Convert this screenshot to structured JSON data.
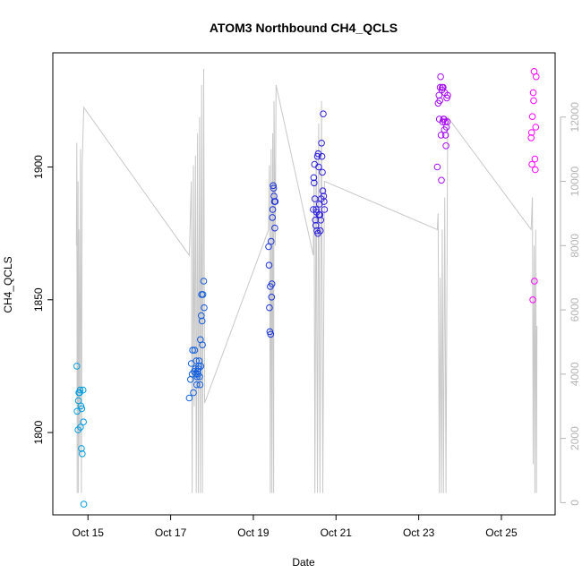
{
  "chart_data": {
    "type": "scatter",
    "title": "ATOM3 Northbound CH4_QCLS",
    "xlabel": "Date",
    "ylabel": "CH4_QCLS",
    "x_ticks": [
      "Oct 15",
      "Oct 17",
      "Oct 19",
      "Oct 21",
      "Oct 23",
      "Oct 25"
    ],
    "y_ticks": [
      1800,
      1850,
      1900
    ],
    "y2_ticks": [
      0,
      2000,
      4000,
      6000,
      8000,
      10000,
      12000
    ],
    "xlim_days": [
      14.15,
      26.3
    ],
    "ylim": [
      1769,
      1943
    ],
    "y2lim": [
      -380,
      14000
    ],
    "colors": {
      "frame": "#000000",
      "altitude_line": "#c8c8c8",
      "right_axis": "#b4b4b4",
      "gradient_start": "#00a0e0",
      "gradient_mid": "#2020d8",
      "gradient_end": "#ff00ff"
    },
    "series": [
      {
        "type": "scatter",
        "colored_by": "time",
        "points": [
          [
            14.73,
            1825
          ],
          [
            14.74,
            1808
          ],
          [
            14.76,
            1801
          ],
          [
            14.77,
            1812
          ],
          [
            14.78,
            1815
          ],
          [
            14.8,
            1815
          ],
          [
            14.81,
            1816
          ],
          [
            14.82,
            1802
          ],
          [
            14.83,
            1810
          ],
          [
            14.84,
            1794
          ],
          [
            14.85,
            1809
          ],
          [
            14.86,
            1792
          ],
          [
            14.88,
            1816
          ],
          [
            14.89,
            1804
          ],
          [
            14.9,
            1773
          ],
          [
            17.45,
            1813
          ],
          [
            17.48,
            1820
          ],
          [
            17.5,
            1826
          ],
          [
            17.52,
            1822
          ],
          [
            17.53,
            1831
          ],
          [
            17.55,
            1815
          ],
          [
            17.57,
            1823
          ],
          [
            17.58,
            1831
          ],
          [
            17.6,
            1824
          ],
          [
            17.61,
            1822
          ],
          [
            17.62,
            1827
          ],
          [
            17.63,
            1818
          ],
          [
            17.64,
            1821
          ],
          [
            17.65,
            1823
          ],
          [
            17.66,
            1822
          ],
          [
            17.67,
            1824
          ],
          [
            17.68,
            1825
          ],
          [
            17.69,
            1827
          ],
          [
            17.7,
            1821
          ],
          [
            17.71,
            1818
          ],
          [
            17.72,
            1835
          ],
          [
            17.73,
            1825
          ],
          [
            17.74,
            1844
          ],
          [
            17.75,
            1852
          ],
          [
            17.76,
            1842
          ],
          [
            17.77,
            1833
          ],
          [
            17.78,
            1852
          ],
          [
            17.8,
            1857
          ],
          [
            17.81,
            1847
          ],
          [
            19.37,
            1870
          ],
          [
            19.38,
            1863
          ],
          [
            19.39,
            1847
          ],
          [
            19.4,
            1838
          ],
          [
            19.41,
            1855
          ],
          [
            19.42,
            1837
          ],
          [
            19.43,
            1872
          ],
          [
            19.44,
            1851
          ],
          [
            19.45,
            1856
          ],
          [
            19.46,
            1881
          ],
          [
            19.47,
            1884
          ],
          [
            19.48,
            1893
          ],
          [
            19.49,
            1892
          ],
          [
            19.5,
            1889
          ],
          [
            19.51,
            1887
          ],
          [
            19.52,
            1877
          ],
          [
            19.53,
            1887
          ],
          [
            20.45,
            1884
          ],
          [
            20.46,
            1896
          ],
          [
            20.47,
            1894
          ],
          [
            20.48,
            1901
          ],
          [
            20.49,
            1888
          ],
          [
            20.5,
            1880
          ],
          [
            20.51,
            1878
          ],
          [
            20.52,
            1884
          ],
          [
            20.53,
            1883
          ],
          [
            20.54,
            1876
          ],
          [
            20.55,
            1904
          ],
          [
            20.56,
            1875
          ],
          [
            20.57,
            1905
          ],
          [
            20.58,
            1900
          ],
          [
            20.59,
            1882
          ],
          [
            20.6,
            1886
          ],
          [
            20.61,
            1882
          ],
          [
            20.62,
            1876
          ],
          [
            20.63,
            1880
          ],
          [
            20.64,
            1888
          ],
          [
            20.65,
            1909
          ],
          [
            20.66,
            1904
          ],
          [
            20.67,
            1898
          ],
          [
            20.68,
            1891
          ],
          [
            20.69,
            1920
          ],
          [
            20.7,
            1889
          ],
          [
            20.71,
            1887
          ],
          [
            20.72,
            1884
          ],
          [
            23.45,
            1900
          ],
          [
            23.47,
            1924
          ],
          [
            23.49,
            1927
          ],
          [
            23.5,
            1918
          ],
          [
            23.51,
            1925
          ],
          [
            23.52,
            1930
          ],
          [
            23.53,
            1934
          ],
          [
            23.54,
            1912
          ],
          [
            23.55,
            1895
          ],
          [
            23.56,
            1929
          ],
          [
            23.57,
            1930
          ],
          [
            23.58,
            1917
          ],
          [
            23.59,
            1930
          ],
          [
            23.6,
            1918
          ],
          [
            23.61,
            1918
          ],
          [
            23.62,
            1914
          ],
          [
            23.63,
            1928
          ],
          [
            23.64,
            1917
          ],
          [
            23.65,
            1912
          ],
          [
            23.66,
            1908
          ],
          [
            23.67,
            1915
          ],
          [
            23.68,
            1926
          ],
          [
            23.69,
            1917
          ],
          [
            23.7,
            1927
          ],
          [
            25.72,
            1911
          ],
          [
            25.73,
            1913
          ],
          [
            25.74,
            1901
          ],
          [
            25.75,
            1919
          ],
          [
            25.76,
            1850
          ],
          [
            25.77,
            1928
          ],
          [
            25.78,
            1925
          ],
          [
            25.79,
            1936
          ],
          [
            25.8,
            1857
          ],
          [
            25.81,
            1903
          ],
          [
            25.82,
            1899
          ],
          [
            25.83,
            1915
          ],
          [
            25.84,
            1934
          ]
        ]
      },
      {
        "type": "line",
        "axis": "right",
        "points": [
          [
            14.72,
            8000
          ],
          [
            14.73,
            11200
          ],
          [
            14.74,
            300
          ],
          [
            14.76,
            10000
          ],
          [
            14.77,
            300
          ],
          [
            14.78,
            8500
          ],
          [
            14.8,
            1500
          ],
          [
            14.82,
            11000
          ],
          [
            14.84,
            300
          ],
          [
            14.86,
            10500
          ],
          [
            14.88,
            11500
          ],
          [
            14.9,
            12300
          ],
          [
            17.45,
            7700
          ],
          [
            17.5,
            10000
          ],
          [
            17.52,
            300
          ],
          [
            17.55,
            10500
          ],
          [
            17.57,
            3000
          ],
          [
            17.6,
            10800
          ],
          [
            17.62,
            300
          ],
          [
            17.65,
            11500
          ],
          [
            17.67,
            300
          ],
          [
            17.7,
            12000
          ],
          [
            17.72,
            300
          ],
          [
            17.75,
            13000
          ],
          [
            17.77,
            300
          ],
          [
            17.8,
            13500
          ],
          [
            17.82,
            3100
          ],
          [
            19.37,
            8500
          ],
          [
            19.39,
            10500
          ],
          [
            19.41,
            300
          ],
          [
            19.43,
            11000
          ],
          [
            19.45,
            300
          ],
          [
            19.47,
            11500
          ],
          [
            19.49,
            300
          ],
          [
            19.5,
            12500
          ],
          [
            19.53,
            8000
          ],
          [
            19.55,
            13000
          ],
          [
            20.45,
            7700
          ],
          [
            20.47,
            10000
          ],
          [
            20.49,
            300
          ],
          [
            20.52,
            11000
          ],
          [
            20.55,
            300
          ],
          [
            20.58,
            11800
          ],
          [
            20.61,
            300
          ],
          [
            20.65,
            12500
          ],
          [
            20.68,
            300
          ],
          [
            20.72,
            10000
          ],
          [
            23.45,
            8500
          ],
          [
            23.47,
            9000
          ],
          [
            23.5,
            300
          ],
          [
            23.52,
            7000
          ],
          [
            23.55,
            300
          ],
          [
            23.57,
            8500
          ],
          [
            23.6,
            300
          ],
          [
            23.63,
            9500
          ],
          [
            23.66,
            300
          ],
          [
            23.7,
            12000
          ],
          [
            25.72,
            8500
          ],
          [
            25.75,
            9500
          ],
          [
            25.77,
            1200
          ],
          [
            25.79,
            8000
          ],
          [
            25.81,
            300
          ],
          [
            25.83,
            8500
          ],
          [
            25.85,
            300
          ],
          [
            25.86,
            5500
          ]
        ]
      }
    ]
  }
}
